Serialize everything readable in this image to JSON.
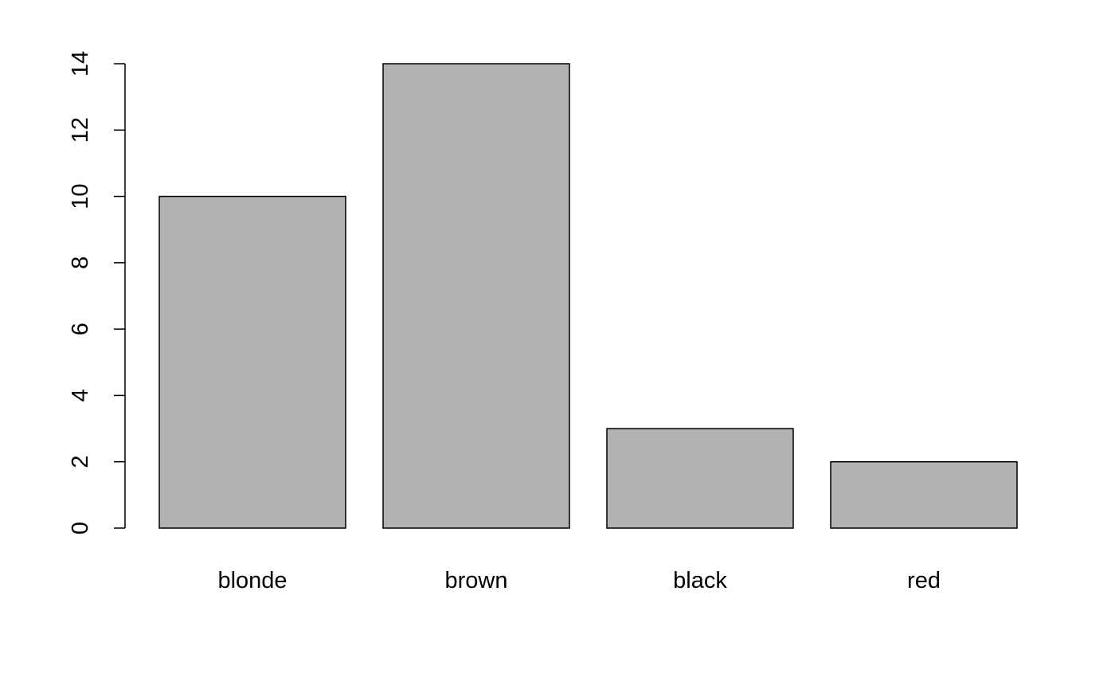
{
  "chart_data": {
    "type": "bar",
    "categories": [
      "blonde",
      "brown",
      "black",
      "red"
    ],
    "values": [
      10,
      14,
      3,
      2
    ],
    "title": "",
    "xlabel": "",
    "ylabel": "",
    "ylim": [
      0,
      14
    ],
    "yticks": [
      0,
      2,
      4,
      6,
      8,
      10,
      12,
      14
    ],
    "ytick_labels": [
      "0",
      "2",
      "4",
      "6",
      "8",
      "10",
      "12",
      "14"
    ],
    "grid": false,
    "legend": "none",
    "bar_color": "#b2b2b2",
    "bar_edge_color": "#000000"
  }
}
